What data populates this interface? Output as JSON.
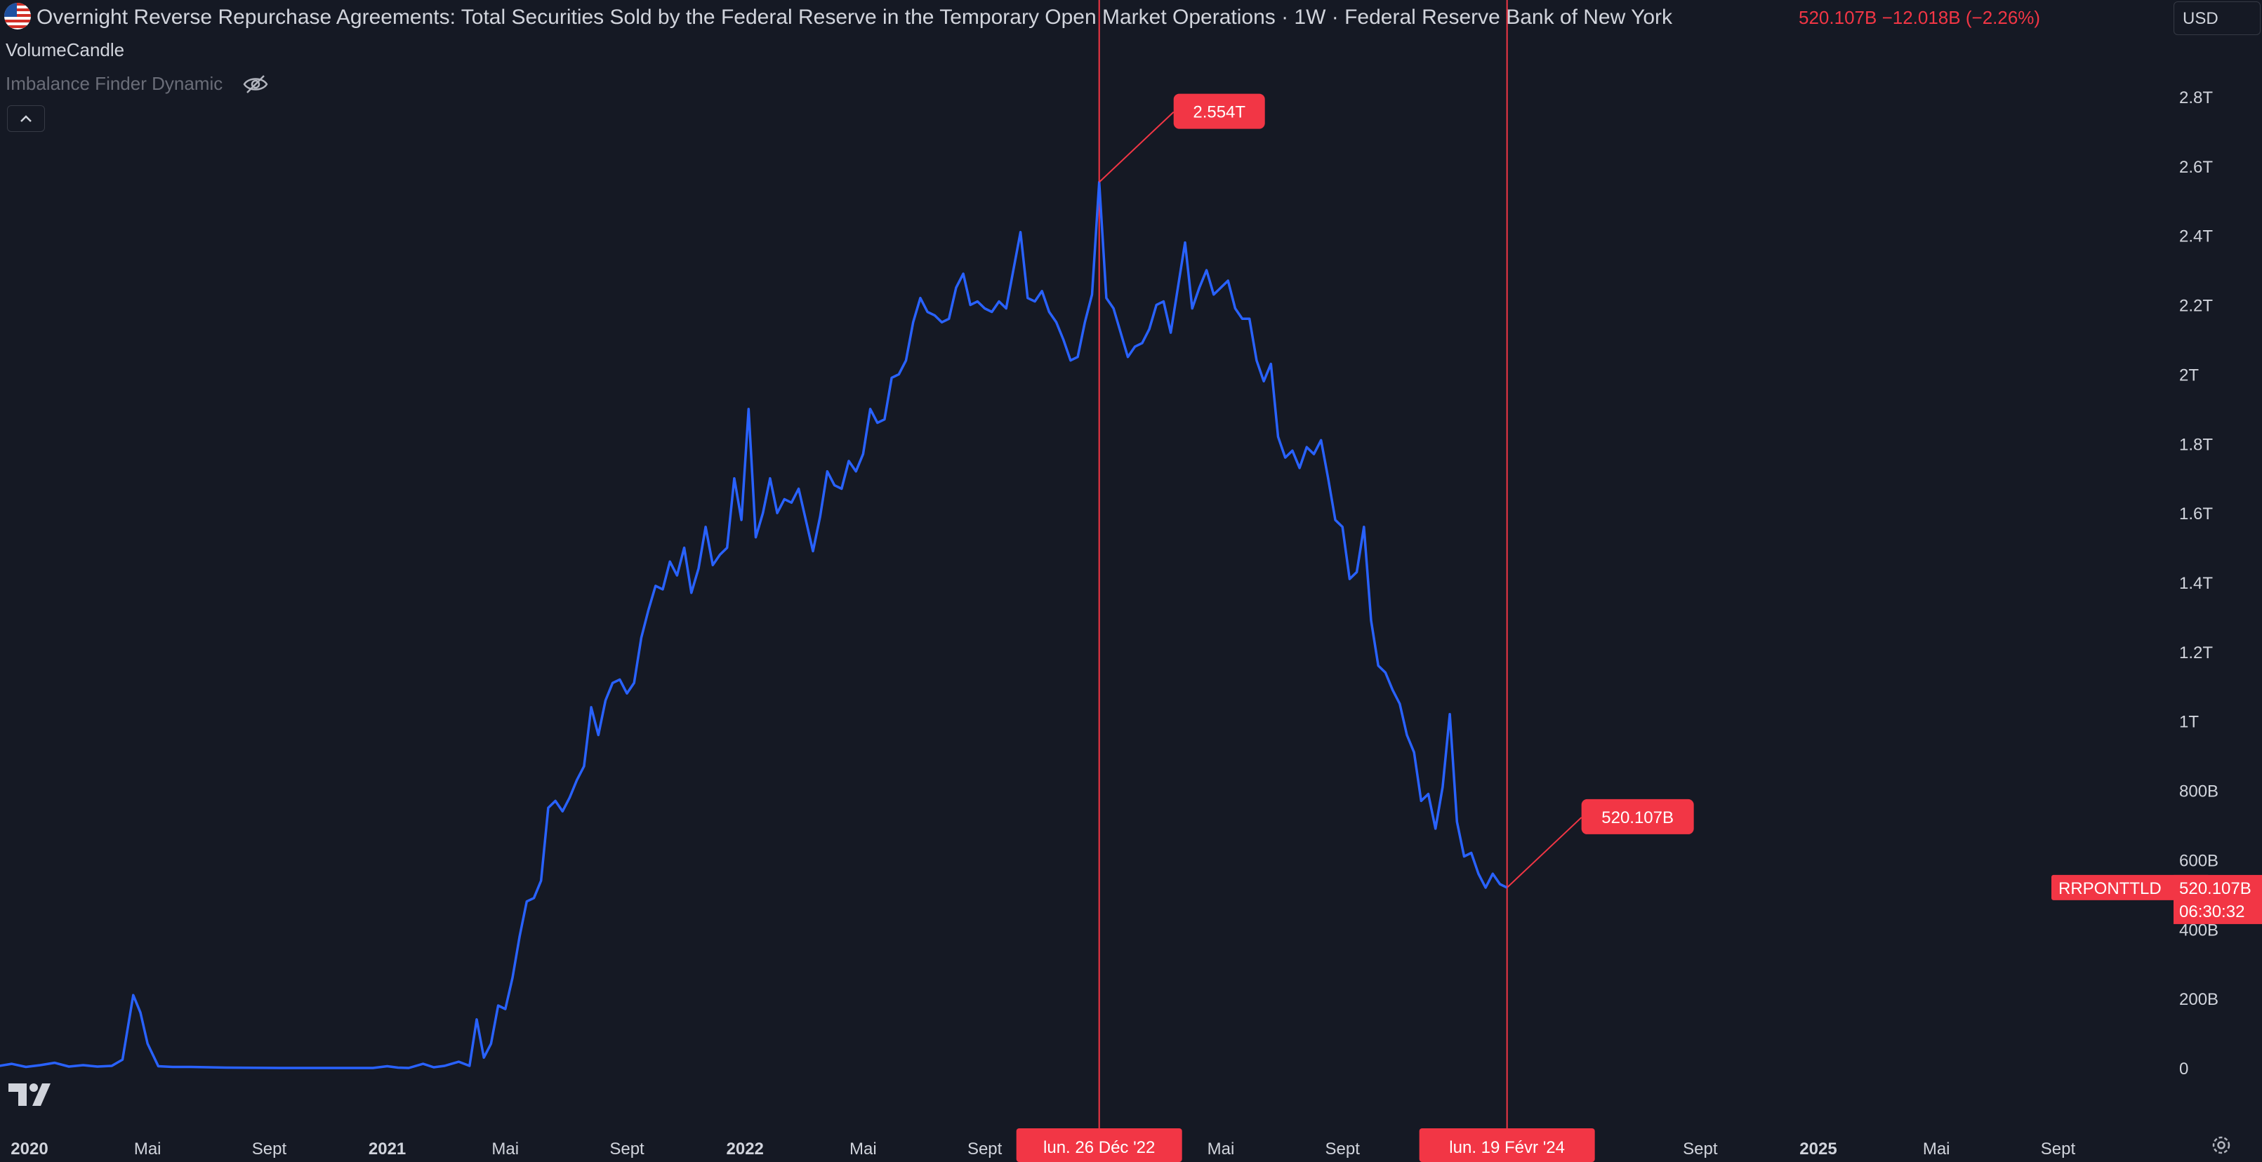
{
  "header": {
    "title": "Overnight Reverse Repurchase Agreements: Total Securities Sold by the Federal Reserve in the Temporary Open Market Operations · 1W · Federal Reserve Bank of New York",
    "last": "520.107B",
    "change": "−12.018B",
    "change_pct": "(−2.26%)",
    "currency": "USD",
    "flag_icon": "us-flag-icon"
  },
  "indicators": [
    {
      "label": "VolumeCandle"
    },
    {
      "label": "Imbalance Finder Dynamic",
      "hidden_icon": "eye-off-icon"
    }
  ],
  "colors": {
    "background": "#151924",
    "line": "#2962ff",
    "accent": "#f23645",
    "text": "#d1d4dc",
    "muted": "#6a6d78"
  },
  "chart_data": {
    "type": "line",
    "y_ticks": [
      {
        "value": 0,
        "label": "0"
      },
      {
        "value": 200,
        "label": "200B"
      },
      {
        "value": 400,
        "label": "400B"
      },
      {
        "value": 600,
        "label": "600B"
      },
      {
        "value": 800,
        "label": "800B"
      },
      {
        "value": 1000,
        "label": "1T"
      },
      {
        "value": 1200,
        "label": "1.2T"
      },
      {
        "value": 1400,
        "label": "1.4T"
      },
      {
        "value": 1600,
        "label": "1.6T"
      },
      {
        "value": 1800,
        "label": "1.8T"
      },
      {
        "value": 2000,
        "label": "2T"
      },
      {
        "value": 2200,
        "label": "2.2T"
      },
      {
        "value": 2400,
        "label": "2.4T"
      },
      {
        "value": 2600,
        "label": "2.6T"
      },
      {
        "value": 2800,
        "label": "2.8T"
      }
    ],
    "x_ticks": [
      {
        "value": 2020.0,
        "label": "2020",
        "bold": true
      },
      {
        "value": 2020.33,
        "label": "Mai",
        "bold": false
      },
      {
        "value": 2020.67,
        "label": "Sept",
        "bold": false
      },
      {
        "value": 2021.0,
        "label": "2021",
        "bold": true
      },
      {
        "value": 2021.33,
        "label": "Mai",
        "bold": false
      },
      {
        "value": 2021.67,
        "label": "Sept",
        "bold": false
      },
      {
        "value": 2022.0,
        "label": "2022",
        "bold": true
      },
      {
        "value": 2022.33,
        "label": "Mai",
        "bold": false
      },
      {
        "value": 2022.67,
        "label": "Sept",
        "bold": false
      },
      {
        "value": 2023.33,
        "label": "Mai",
        "bold": false
      },
      {
        "value": 2023.67,
        "label": "Sept",
        "bold": false
      },
      {
        "value": 2024.33,
        "label": "Mai",
        "bold": false
      },
      {
        "value": 2024.67,
        "label": "Sept",
        "bold": false
      },
      {
        "value": 2025.0,
        "label": "2025",
        "bold": true
      },
      {
        "value": 2025.33,
        "label": "Mai",
        "bold": false
      },
      {
        "value": 2025.67,
        "label": "Sept",
        "bold": false
      }
    ],
    "series": [
      {
        "ticker": "RRPONTTLD",
        "points": [
          [
            2019.91,
            5
          ],
          [
            2019.95,
            12
          ],
          [
            2019.99,
            3
          ],
          [
            2020.03,
            8
          ],
          [
            2020.07,
            15
          ],
          [
            2020.11,
            4
          ],
          [
            2020.15,
            8
          ],
          [
            2020.19,
            4
          ],
          [
            2020.23,
            6
          ],
          [
            2020.26,
            24
          ],
          [
            2020.29,
            210
          ],
          [
            2020.31,
            160
          ],
          [
            2020.33,
            70
          ],
          [
            2020.36,
            5
          ],
          [
            2020.4,
            3
          ],
          [
            2020.45,
            3
          ],
          [
            2020.55,
            1
          ],
          [
            2020.7,
            0
          ],
          [
            2020.85,
            0
          ],
          [
            2020.96,
            0
          ],
          [
            2021.0,
            5
          ],
          [
            2021.03,
            1
          ],
          [
            2021.06,
            0
          ],
          [
            2021.1,
            12
          ],
          [
            2021.13,
            2
          ],
          [
            2021.16,
            6
          ],
          [
            2021.2,
            18
          ],
          [
            2021.23,
            6
          ],
          [
            2021.25,
            140
          ],
          [
            2021.27,
            30
          ],
          [
            2021.29,
            70
          ],
          [
            2021.31,
            180
          ],
          [
            2021.33,
            170
          ],
          [
            2021.35,
            260
          ],
          [
            2021.37,
            380
          ],
          [
            2021.39,
            480
          ],
          [
            2021.41,
            490
          ],
          [
            2021.43,
            540
          ],
          [
            2021.45,
            750
          ],
          [
            2021.47,
            770
          ],
          [
            2021.49,
            740
          ],
          [
            2021.51,
            780
          ],
          [
            2021.53,
            830
          ],
          [
            2021.55,
            870
          ],
          [
            2021.57,
            1040
          ],
          [
            2021.59,
            960
          ],
          [
            2021.61,
            1060
          ],
          [
            2021.63,
            1110
          ],
          [
            2021.65,
            1120
          ],
          [
            2021.67,
            1080
          ],
          [
            2021.69,
            1110
          ],
          [
            2021.71,
            1240
          ],
          [
            2021.73,
            1320
          ],
          [
            2021.75,
            1390
          ],
          [
            2021.77,
            1380
          ],
          [
            2021.79,
            1460
          ],
          [
            2021.81,
            1420
          ],
          [
            2021.83,
            1500
          ],
          [
            2021.85,
            1370
          ],
          [
            2021.87,
            1440
          ],
          [
            2021.89,
            1560
          ],
          [
            2021.91,
            1450
          ],
          [
            2021.93,
            1480
          ],
          [
            2021.95,
            1500
          ],
          [
            2021.97,
            1700
          ],
          [
            2021.99,
            1580
          ],
          [
            2022.01,
            1900
          ],
          [
            2022.03,
            1530
          ],
          [
            2022.05,
            1600
          ],
          [
            2022.07,
            1700
          ],
          [
            2022.09,
            1600
          ],
          [
            2022.11,
            1640
          ],
          [
            2022.13,
            1630
          ],
          [
            2022.15,
            1670
          ],
          [
            2022.17,
            1580
          ],
          [
            2022.19,
            1490
          ],
          [
            2022.21,
            1590
          ],
          [
            2022.23,
            1720
          ],
          [
            2022.25,
            1680
          ],
          [
            2022.27,
            1670
          ],
          [
            2022.29,
            1750
          ],
          [
            2022.31,
            1720
          ],
          [
            2022.33,
            1770
          ],
          [
            2022.35,
            1900
          ],
          [
            2022.37,
            1860
          ],
          [
            2022.39,
            1870
          ],
          [
            2022.41,
            1990
          ],
          [
            2022.43,
            2000
          ],
          [
            2022.45,
            2040
          ],
          [
            2022.47,
            2150
          ],
          [
            2022.49,
            2220
          ],
          [
            2022.51,
            2180
          ],
          [
            2022.53,
            2170
          ],
          [
            2022.55,
            2150
          ],
          [
            2022.57,
            2160
          ],
          [
            2022.59,
            2250
          ],
          [
            2022.61,
            2290
          ],
          [
            2022.63,
            2200
          ],
          [
            2022.65,
            2210
          ],
          [
            2022.67,
            2190
          ],
          [
            2022.69,
            2180
          ],
          [
            2022.71,
            2210
          ],
          [
            2022.73,
            2190
          ],
          [
            2022.75,
            2300
          ],
          [
            2022.77,
            2410
          ],
          [
            2022.79,
            2220
          ],
          [
            2022.81,
            2210
          ],
          [
            2022.83,
            2240
          ],
          [
            2022.85,
            2180
          ],
          [
            2022.87,
            2150
          ],
          [
            2022.89,
            2100
          ],
          [
            2022.91,
            2040
          ],
          [
            2022.93,
            2050
          ],
          [
            2022.95,
            2150
          ],
          [
            2022.97,
            2230
          ],
          [
            2022.99,
            2554
          ],
          [
            2023.01,
            2220
          ],
          [
            2023.03,
            2190
          ],
          [
            2023.05,
            2120
          ],
          [
            2023.07,
            2050
          ],
          [
            2023.09,
            2080
          ],
          [
            2023.11,
            2090
          ],
          [
            2023.13,
            2130
          ],
          [
            2023.15,
            2200
          ],
          [
            2023.17,
            2210
          ],
          [
            2023.19,
            2120
          ],
          [
            2023.21,
            2250
          ],
          [
            2023.23,
            2380
          ],
          [
            2023.25,
            2190
          ],
          [
            2023.27,
            2250
          ],
          [
            2023.29,
            2300
          ],
          [
            2023.31,
            2230
          ],
          [
            2023.33,
            2250
          ],
          [
            2023.35,
            2270
          ],
          [
            2023.37,
            2190
          ],
          [
            2023.39,
            2160
          ],
          [
            2023.41,
            2160
          ],
          [
            2023.43,
            2040
          ],
          [
            2023.45,
            1980
          ],
          [
            2023.47,
            2030
          ],
          [
            2023.49,
            1820
          ],
          [
            2023.51,
            1760
          ],
          [
            2023.53,
            1780
          ],
          [
            2023.55,
            1730
          ],
          [
            2023.57,
            1790
          ],
          [
            2023.59,
            1770
          ],
          [
            2023.61,
            1810
          ],
          [
            2023.63,
            1700
          ],
          [
            2023.65,
            1580
          ],
          [
            2023.67,
            1560
          ],
          [
            2023.69,
            1410
          ],
          [
            2023.71,
            1430
          ],
          [
            2023.73,
            1560
          ],
          [
            2023.75,
            1290
          ],
          [
            2023.77,
            1160
          ],
          [
            2023.79,
            1140
          ],
          [
            2023.81,
            1090
          ],
          [
            2023.83,
            1050
          ],
          [
            2023.85,
            960
          ],
          [
            2023.87,
            910
          ],
          [
            2023.89,
            770
          ],
          [
            2023.91,
            790
          ],
          [
            2023.93,
            690
          ],
          [
            2023.95,
            810
          ],
          [
            2023.97,
            1020
          ],
          [
            2023.99,
            710
          ],
          [
            2024.01,
            610
          ],
          [
            2024.03,
            620
          ],
          [
            2024.05,
            560
          ],
          [
            2024.07,
            520
          ],
          [
            2024.09,
            560
          ],
          [
            2024.11,
            530
          ],
          [
            2024.13,
            520.107
          ]
        ]
      }
    ],
    "annotations": [
      {
        "x": 2022.99,
        "y": 2554,
        "label": "2.554T",
        "date": "lun. 26 Déc '22"
      },
      {
        "x": 2024.13,
        "y": 520.107,
        "label": "520.107B",
        "date": "lun. 19 Févr '24"
      }
    ],
    "last_price": {
      "ticker": "RRPONTTLD",
      "value": 520.107,
      "label": "520.107B",
      "countdown": "06:30:32"
    }
  }
}
